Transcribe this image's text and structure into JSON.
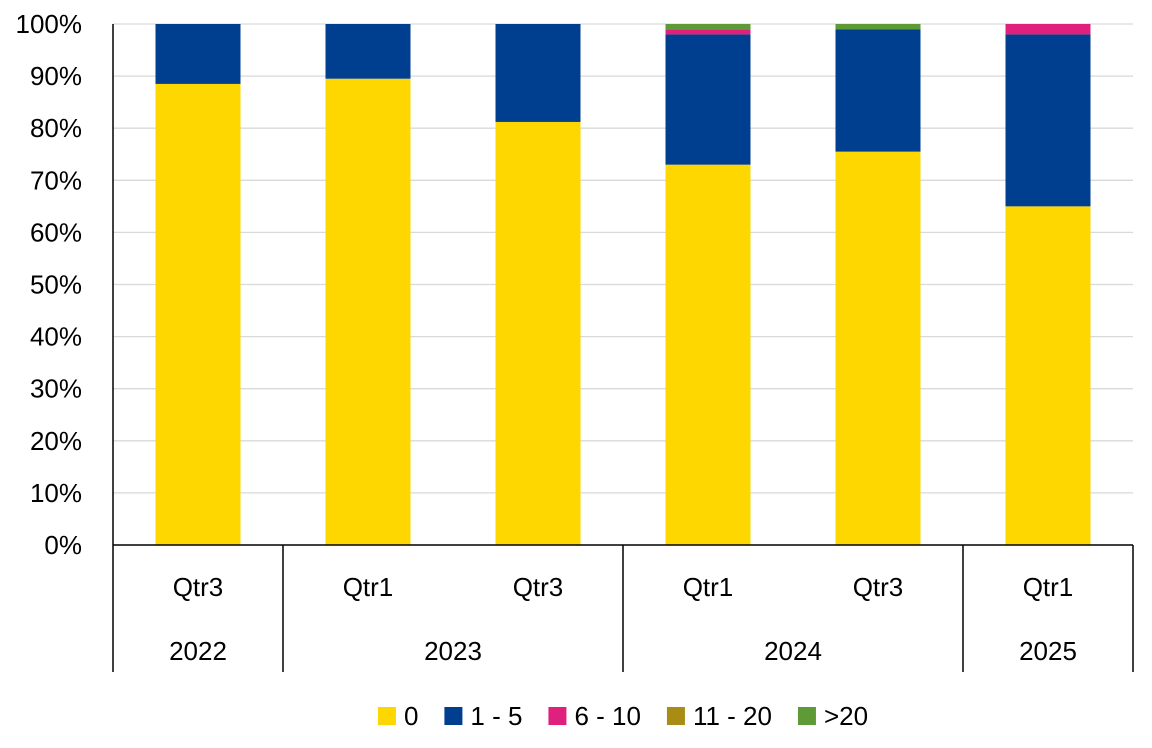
{
  "chart_data": {
    "type": "bar",
    "stacked": true,
    "percent": true,
    "categories": [
      {
        "quarter": "Qtr3",
        "year": "2022"
      },
      {
        "quarter": "Qtr1",
        "year": "2023"
      },
      {
        "quarter": "Qtr3",
        "year": "2023"
      },
      {
        "quarter": "Qtr1",
        "year": "2024"
      },
      {
        "quarter": "Qtr3",
        "year": "2024"
      },
      {
        "quarter": "Qtr1",
        "year": "2025"
      }
    ],
    "year_groups": [
      {
        "label": "2022",
        "span": 1
      },
      {
        "label": "2023",
        "span": 2
      },
      {
        "label": "2024",
        "span": 2
      },
      {
        "label": "2025",
        "span": 1
      }
    ],
    "series": [
      {
        "name": "0",
        "color": "#FFD700",
        "values": [
          88.5,
          89.5,
          81.2,
          73.0,
          75.5,
          65.0
        ]
      },
      {
        "name": "1 - 5",
        "color": "#003F8F",
        "values": [
          11.5,
          10.5,
          18.8,
          25.0,
          23.5,
          33.0
        ]
      },
      {
        "name": "6 - 10",
        "color": "#E0207D",
        "values": [
          0,
          0,
          0,
          1.0,
          0,
          2.0
        ]
      },
      {
        "name": "11 - 20",
        "color": "#A88C14",
        "values": [
          0,
          0,
          0,
          0,
          0,
          0
        ]
      },
      {
        "name": ">20",
        "color": "#5E9A35",
        "values": [
          0,
          0,
          0,
          1.0,
          1.0,
          0
        ]
      }
    ],
    "y_ticks": [
      "0%",
      "10%",
      "20%",
      "30%",
      "40%",
      "50%",
      "60%",
      "70%",
      "80%",
      "90%",
      "100%"
    ],
    "ylim": [
      0,
      100
    ],
    "grid": true,
    "legend_position": "bottom"
  }
}
